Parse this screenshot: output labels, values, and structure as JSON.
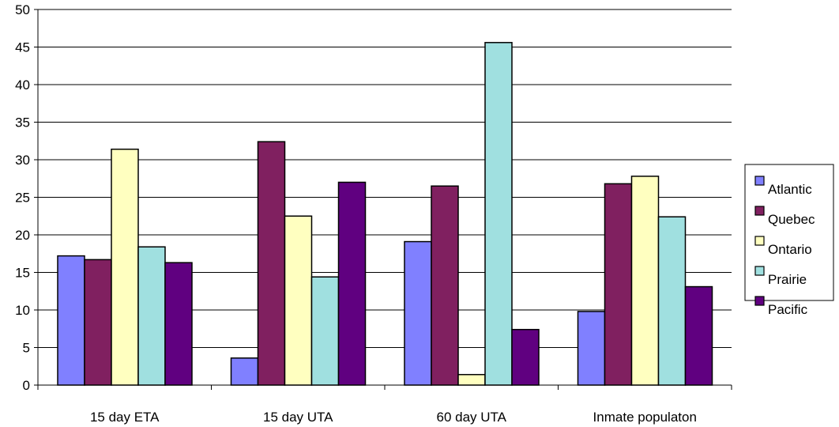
{
  "chart_data": {
    "type": "bar",
    "title": "",
    "xlabel": "",
    "ylabel": "",
    "categories": [
      "15 day ETA",
      "15 day UTA",
      "60 day UTA",
      "Inmate populaton"
    ],
    "ylim": [
      0,
      50
    ],
    "yticks": [
      0,
      5,
      10,
      15,
      20,
      25,
      30,
      35,
      40,
      45,
      50
    ],
    "grid": true,
    "legend_position": "right",
    "series": [
      {
        "name": "Atlantic",
        "color": "#8080ff",
        "values": [
          17.2,
          3.6,
          19.1,
          9.8
        ]
      },
      {
        "name": "Quebec",
        "color": "#802060",
        "values": [
          16.7,
          32.4,
          26.5,
          26.8
        ]
      },
      {
        "name": "Ontario",
        "color": "#ffffc0",
        "values": [
          31.4,
          22.5,
          1.4,
          27.8
        ]
      },
      {
        "name": "Prairie",
        "color": "#a0e0e0",
        "values": [
          18.4,
          14.4,
          45.6,
          22.4
        ]
      },
      {
        "name": "Pacific",
        "color": "#600080",
        "values": [
          16.3,
          27.0,
          7.4,
          13.1
        ]
      }
    ]
  }
}
